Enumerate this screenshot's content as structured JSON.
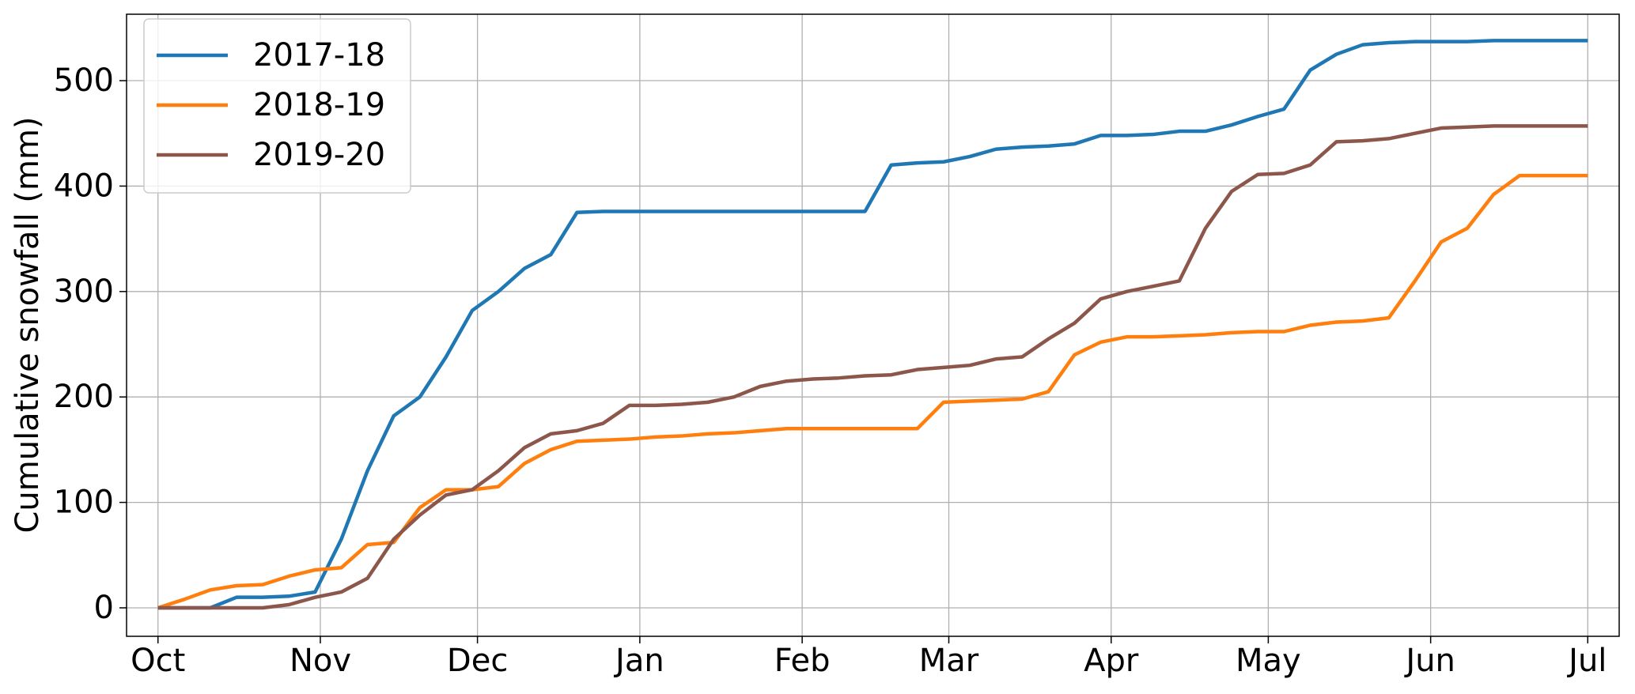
{
  "chart_data": {
    "type": "line",
    "ylabel": "Cumulative snowfall (mm)",
    "x": [
      0,
      5,
      10,
      15,
      20,
      25,
      30,
      35,
      40,
      45,
      50,
      55,
      60,
      65,
      70,
      75,
      80,
      85,
      90,
      95,
      100,
      105,
      110,
      115,
      120,
      125,
      130,
      135,
      140,
      145,
      150,
      155,
      160,
      165,
      170,
      175,
      180,
      185,
      190,
      195,
      200,
      205,
      210,
      215,
      220,
      225,
      230,
      235,
      240,
      245,
      250,
      255,
      260,
      265,
      270,
      273
    ],
    "series": [
      {
        "name": "2017-18",
        "color": "#1f77b4",
        "values": [
          0,
          0,
          0,
          10,
          10,
          11,
          15,
          65,
          130,
          182,
          200,
          238,
          282,
          300,
          322,
          335,
          375,
          376,
          376,
          376,
          376,
          376,
          376,
          376,
          376,
          376,
          376,
          376,
          420,
          422,
          423,
          428,
          435,
          437,
          438,
          440,
          448,
          448,
          449,
          452,
          452,
          458,
          466,
          473,
          510,
          525,
          534,
          536,
          537,
          537,
          537,
          538,
          538,
          538,
          538,
          538
        ]
      },
      {
        "name": "2018-19",
        "color": "#ff7f0e",
        "values": [
          0,
          8,
          17,
          21,
          22,
          30,
          36,
          38,
          60,
          62,
          95,
          112,
          112,
          115,
          137,
          150,
          158,
          159,
          160,
          162,
          163,
          165,
          166,
          168,
          170,
          170,
          170,
          170,
          170,
          170,
          195,
          196,
          197,
          198,
          205,
          240,
          252,
          257,
          257,
          258,
          259,
          261,
          262,
          262,
          268,
          271,
          272,
          275,
          310,
          347,
          360,
          392,
          410,
          410,
          410,
          410
        ]
      },
      {
        "name": "2019-20",
        "color": "#8c564b",
        "values": [
          0,
          0,
          0,
          0,
          0,
          3,
          10,
          15,
          28,
          65,
          88,
          107,
          112,
          130,
          152,
          165,
          168,
          175,
          192,
          192,
          193,
          195,
          200,
          210,
          215,
          217,
          218,
          220,
          221,
          226,
          228,
          230,
          236,
          238,
          255,
          270,
          293,
          300,
          305,
          310,
          360,
          395,
          411,
          412,
          420,
          442,
          443,
          445,
          450,
          455,
          456,
          457,
          457,
          457,
          457,
          457
        ]
      }
    ],
    "xlim": [
      -6,
      279
    ],
    "xticks": [
      {
        "value": 0,
        "label": "Oct"
      },
      {
        "value": 31,
        "label": "Nov"
      },
      {
        "value": 61,
        "label": "Dec"
      },
      {
        "value": 92,
        "label": "Jan"
      },
      {
        "value": 123,
        "label": "Feb"
      },
      {
        "value": 151,
        "label": "Mar"
      },
      {
        "value": 182,
        "label": "Apr"
      },
      {
        "value": 212,
        "label": "May"
      },
      {
        "value": 243,
        "label": "Jun"
      },
      {
        "value": 273,
        "label": "Jul"
      }
    ],
    "ylim": [
      -27,
      563
    ],
    "yticks": [
      0,
      100,
      200,
      300,
      400,
      500
    ],
    "grid": true,
    "legend": "upper-left"
  }
}
